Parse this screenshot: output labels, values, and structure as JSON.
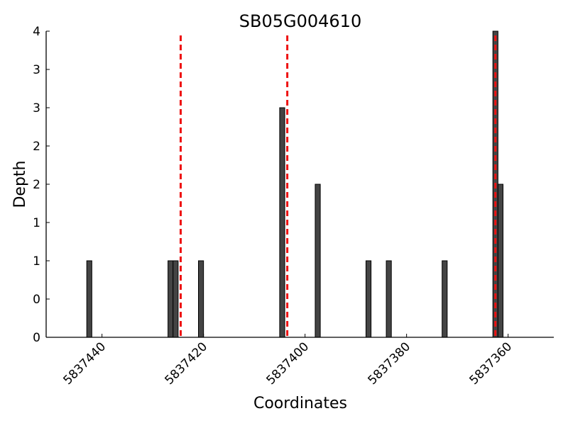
{
  "chart_data": {
    "type": "bar",
    "title": "SB05G004610",
    "x_label": "Coordinates",
    "y_label": "Depth",
    "x": [
      5837442,
      5837426,
      5837425,
      5837420,
      5837404,
      5837397,
      5837387,
      5837383,
      5837372,
      5837362,
      5837361
    ],
    "values": [
      1,
      1,
      1,
      1,
      3,
      2,
      1,
      1,
      1,
      4,
      2
    ],
    "color": "#444444",
    "xlim": [
      5837451,
      5837351
    ],
    "xticks": [
      5837440,
      5837420,
      5837400,
      5837380,
      5837360
    ],
    "ylim": [
      0,
      4
    ],
    "yticks": [
      0,
      {
        "value": 0.5,
        "label": "0"
      },
      1,
      {
        "value": 1.5,
        "label": "1"
      },
      2,
      {
        "value": 2.5,
        "label": "2"
      },
      3,
      {
        "value": 3.5,
        "label": "3"
      },
      4
    ],
    "vlines": [
      5837424.5,
      5837403.5,
      5837362.5
    ],
    "vline_color": "#ee1111"
  }
}
